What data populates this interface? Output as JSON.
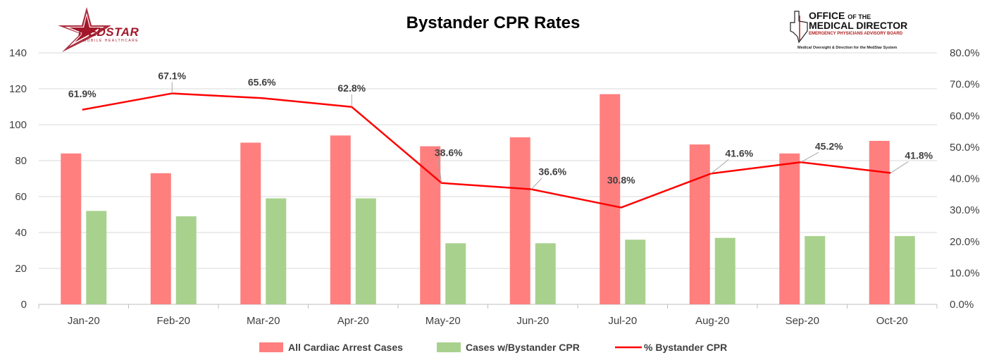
{
  "logos": {
    "left": {
      "text": "MEDSTAR",
      "subtext": "MOBILE HEALTHCARE"
    },
    "right": {
      "line1_big": "OFFICE",
      "line1_small": "OF THE",
      "line2": "MEDICAL DIRECTOR",
      "line3": "EMERGENCY PHYSICIANS ADVISORY BOARD",
      "line4": "Medical Oversight & Direction for the MedStar System"
    }
  },
  "chart_data": {
    "type": "bar",
    "title": "Bystander CPR Rates",
    "categories": [
      "Jan-20",
      "Feb-20",
      "Mar-20",
      "Apr-20",
      "May-20",
      "Jun-20",
      "Jul-20",
      "Aug-20",
      "Sep-20",
      "Oct-20"
    ],
    "series": [
      {
        "name": "All Cardiac Arrest Cases",
        "type": "bar",
        "axis": "left",
        "color": "#ff7f7f",
        "values": [
          84,
          73,
          90,
          94,
          88,
          93,
          117,
          89,
          84,
          91
        ]
      },
      {
        "name": "Cases w/Bystander CPR",
        "type": "bar",
        "axis": "left",
        "color": "#a9d18e",
        "values": [
          52,
          49,
          59,
          59,
          34,
          34,
          36,
          37,
          38,
          38
        ]
      },
      {
        "name": "% Bystander CPR",
        "type": "line",
        "axis": "right",
        "color": "#ff0000",
        "values": [
          61.9,
          67.1,
          65.6,
          62.8,
          38.6,
          36.6,
          30.8,
          41.6,
          45.2,
          41.8
        ],
        "labels": [
          "61.9%",
          "67.1%",
          "65.6%",
          "62.8%",
          "38.6%",
          "36.6%",
          "30.8%",
          "41.6%",
          "45.2%",
          "41.8%"
        ]
      }
    ],
    "y_left": {
      "min": 0,
      "max": 140,
      "ticks": [
        "0",
        "20",
        "40",
        "60",
        "80",
        "100",
        "120",
        "140"
      ]
    },
    "y_right": {
      "min": 0,
      "max": 80,
      "ticks": [
        "0.0%",
        "10.0%",
        "20.0%",
        "30.0%",
        "40.0%",
        "50.0%",
        "60.0%",
        "70.0%",
        "80.0%"
      ]
    },
    "grid": true,
    "legend_position": "bottom",
    "gridline_color": "#d9d9d9",
    "axis_color": "#bfbfbf"
  }
}
